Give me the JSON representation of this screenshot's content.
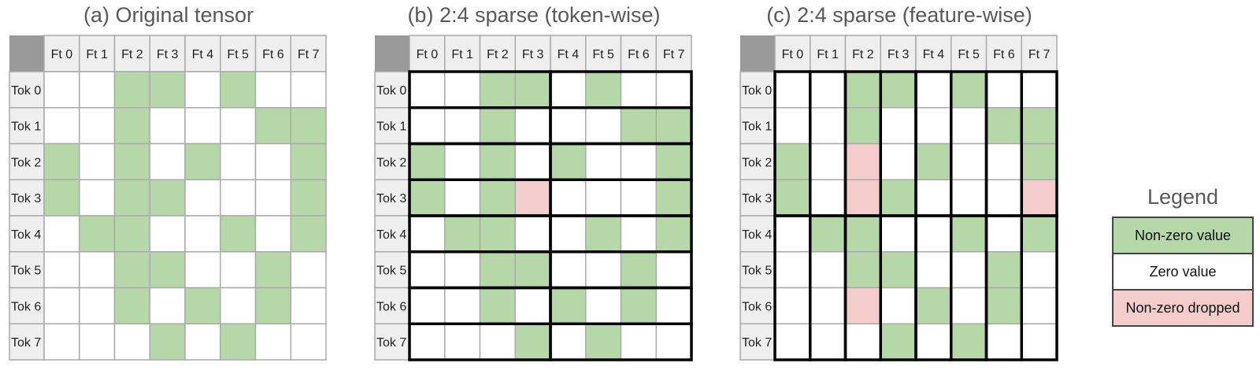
{
  "colors": {
    "nonzero": "#b6d7a8",
    "zero": "#ffffff",
    "dropped": "#f4cccc",
    "header": "#efefef",
    "corner": "#999999"
  },
  "columns": [
    "Ft 0",
    "Ft 1",
    "Ft 2",
    "Ft 3",
    "Ft 4",
    "Ft 5",
    "Ft 6",
    "Ft 7"
  ],
  "rows": [
    "Tok 0",
    "Tok 1",
    "Tok 2",
    "Tok 3",
    "Tok 4",
    "Tok 5",
    "Tok 6",
    "Tok 7"
  ],
  "panels": [
    {
      "title": "(a) Original tensor",
      "grouping": "none",
      "cells": [
        [
          0,
          0,
          1,
          1,
          0,
          1,
          0,
          0
        ],
        [
          0,
          0,
          1,
          0,
          0,
          0,
          1,
          1
        ],
        [
          1,
          0,
          1,
          0,
          1,
          0,
          0,
          1
        ],
        [
          1,
          0,
          1,
          1,
          0,
          0,
          0,
          1
        ],
        [
          0,
          1,
          1,
          0,
          0,
          1,
          0,
          1
        ],
        [
          0,
          0,
          1,
          1,
          0,
          0,
          1,
          0
        ],
        [
          0,
          0,
          1,
          0,
          1,
          0,
          1,
          0
        ],
        [
          0,
          0,
          0,
          1,
          0,
          1,
          0,
          0
        ]
      ]
    },
    {
      "title": "(b) 2:4 sparse (token-wise)",
      "grouping": "token-wise",
      "cells": [
        [
          0,
          0,
          1,
          1,
          0,
          1,
          0,
          0
        ],
        [
          0,
          0,
          1,
          0,
          0,
          0,
          1,
          1
        ],
        [
          1,
          0,
          1,
          0,
          1,
          0,
          0,
          1
        ],
        [
          1,
          0,
          1,
          2,
          0,
          0,
          0,
          1
        ],
        [
          0,
          1,
          1,
          0,
          0,
          1,
          0,
          1
        ],
        [
          0,
          0,
          1,
          1,
          0,
          0,
          1,
          0
        ],
        [
          0,
          0,
          1,
          0,
          1,
          0,
          1,
          0
        ],
        [
          0,
          0,
          0,
          1,
          0,
          1,
          0,
          0
        ]
      ]
    },
    {
      "title": "(c) 2:4 sparse (feature-wise)",
      "grouping": "feature-wise",
      "cells": [
        [
          0,
          0,
          1,
          1,
          0,
          1,
          0,
          0
        ],
        [
          0,
          0,
          1,
          0,
          0,
          0,
          1,
          1
        ],
        [
          1,
          0,
          2,
          0,
          1,
          0,
          0,
          1
        ],
        [
          1,
          0,
          2,
          1,
          0,
          0,
          0,
          2
        ],
        [
          0,
          1,
          1,
          0,
          0,
          1,
          0,
          1
        ],
        [
          0,
          0,
          1,
          1,
          0,
          0,
          1,
          0
        ],
        [
          0,
          0,
          2,
          0,
          1,
          0,
          1,
          0
        ],
        [
          0,
          0,
          0,
          1,
          0,
          1,
          0,
          0
        ]
      ]
    }
  ],
  "legend": {
    "title": "Legend",
    "items": [
      {
        "label": "Non-zero value",
        "color": "#b6d7a8"
      },
      {
        "label": "Zero value",
        "color": "#ffffff"
      },
      {
        "label": "Non-zero dropped",
        "color": "#f4cccc"
      }
    ]
  }
}
